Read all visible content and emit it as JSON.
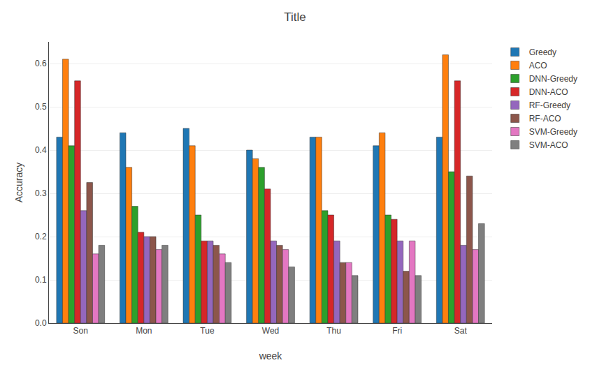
{
  "chart_data": {
    "type": "bar",
    "title": "Title",
    "x_label": "week",
    "y_label": "Accuracy",
    "categories": [
      "Son",
      "Mon",
      "Tue",
      "Wed",
      "Thu",
      "Fri",
      "Sat"
    ],
    "series": [
      {
        "name": "Greedy",
        "values": [
          0.43,
          0.44,
          0.45,
          0.4,
          0.43,
          0.41,
          0.43
        ]
      },
      {
        "name": "ACO",
        "values": [
          0.61,
          0.36,
          0.41,
          0.38,
          0.43,
          0.44,
          0.62
        ]
      },
      {
        "name": "DNN-Greedy",
        "values": [
          0.41,
          0.27,
          0.25,
          0.36,
          0.26,
          0.25,
          0.35
        ]
      },
      {
        "name": "DNN-ACO",
        "values": [
          0.56,
          0.21,
          0.19,
          0.31,
          0.25,
          0.24,
          0.56
        ]
      },
      {
        "name": "RF-Greedy",
        "values": [
          0.26,
          0.2,
          0.19,
          0.19,
          0.19,
          0.19,
          0.18
        ]
      },
      {
        "name": "RF-ACO",
        "values": [
          0.325,
          0.2,
          0.18,
          0.18,
          0.14,
          0.12,
          0.34
        ]
      },
      {
        "name": "SVM-Greedy",
        "values": [
          0.16,
          0.17,
          0.16,
          0.17,
          0.14,
          0.19,
          0.17
        ]
      },
      {
        "name": "SVM-ACO",
        "values": [
          0.18,
          0.18,
          0.14,
          0.13,
          0.11,
          0.11,
          0.23
        ]
      }
    ],
    "ylim": [
      0.0,
      0.65
    ],
    "yticks": [
      {
        "value": 0.0,
        "label": "0.0"
      },
      0.1,
      0.2,
      0.3,
      0.4,
      0.5,
      0.6
    ],
    "grid": true,
    "legend": "right"
  }
}
